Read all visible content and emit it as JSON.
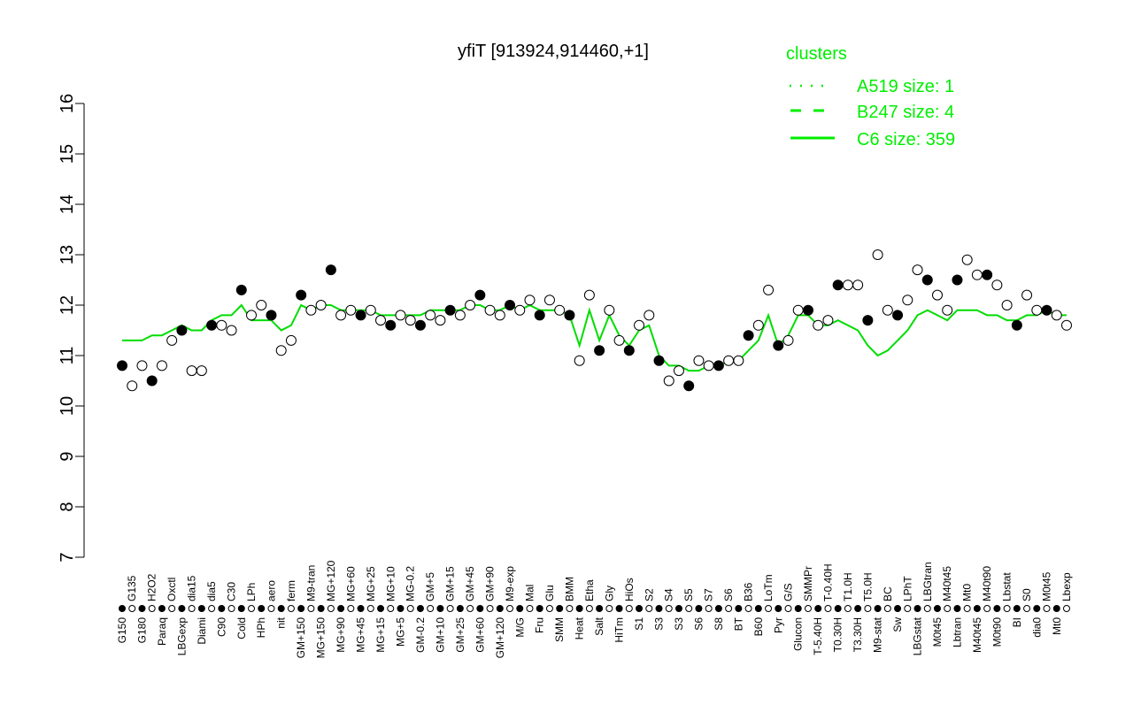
{
  "chart_data": {
    "type": "line",
    "title": "yfiT [913924,914460,+1]",
    "xlabel": "",
    "ylabel": "",
    "ylim": [
      7,
      16
    ],
    "yticks": [
      7,
      8,
      9,
      10,
      11,
      12,
      13,
      14,
      15,
      16
    ],
    "grid": false,
    "legend": {
      "title": "clusters",
      "placement": "top-right",
      "entries": [
        "A519 size: 1",
        "B247 size: 4",
        "C6 size: 359"
      ],
      "styles": [
        "dotted",
        "dashed",
        "solid"
      ]
    },
    "colors": {
      "line": "#00dd00",
      "legend": "#00ee00",
      "points": "#000000"
    },
    "categories": [
      "G150",
      "G135",
      "G180",
      "H2O2",
      "Paraq",
      "Oxctl",
      "LBGexp",
      "dia15",
      "Diami",
      "dia5",
      "C90",
      "C30",
      "Cold",
      "LPh",
      "HPh",
      "aero",
      "nit",
      "ferm",
      "GM+150",
      "M9-tran",
      "MG+150",
      "MG+120",
      "MG+90",
      "MG+60",
      "MG+45",
      "MG+25",
      "MG+15",
      "MG+10",
      "MG+5",
      "MG-0.2",
      "GM-0.2",
      "GM+5",
      "GM+10",
      "GM+15",
      "GM+25",
      "GM+45",
      "GM+60",
      "GM+90",
      "GM+120",
      "M9-exp",
      "M/G",
      "Mal",
      "Fru",
      "Glu",
      "SMM",
      "BMM",
      "Heat",
      "Etha",
      "Salt",
      "Gly",
      "HiTm",
      "HiOs",
      "S1",
      "S2",
      "S3",
      "S4",
      "S3",
      "S5",
      "S6",
      "S7",
      "S8",
      "S6",
      "BT",
      "B36",
      "B60",
      "LoTm",
      "Pyr",
      "G/S",
      "Glucon",
      "SMMPr",
      "T-5.40H",
      "T-0.40H",
      "T0.30H",
      "T1.0H",
      "T3.30H",
      "T5.0H",
      "M9-stat",
      "BC",
      "Sw",
      "LPhT",
      "LBGstat",
      "LBGtran",
      "M0t45",
      "M40t45",
      "Lbtran",
      "Mt0",
      "M40t45",
      "M40t90",
      "M0t90",
      "Lbstat",
      "BI",
      "S0",
      "dia0",
      "M0t45",
      "Mt0",
      "Lbexp"
    ],
    "series": [
      {
        "name": "expression",
        "values": [
          10.8,
          10.4,
          10.8,
          10.5,
          10.8,
          11.3,
          11.5,
          10.7,
          10.7,
          11.6,
          11.6,
          11.5,
          12.3,
          11.8,
          12.0,
          11.8,
          11.1,
          11.3,
          12.2,
          11.9,
          12.0,
          12.7,
          11.8,
          11.9,
          11.8,
          11.9,
          11.7,
          11.6,
          11.8,
          11.7,
          11.6,
          11.8,
          11.7,
          11.9,
          11.8,
          12.0,
          12.2,
          11.9,
          11.8,
          12.0,
          11.9,
          12.1,
          11.8,
          12.1,
          11.9,
          11.8,
          10.9,
          12.2,
          11.1,
          11.9,
          11.3,
          11.1,
          11.6,
          11.8,
          10.9,
          10.5,
          10.7,
          10.4,
          10.9,
          10.8,
          10.8,
          10.9,
          10.9,
          11.4,
          11.6,
          12.3,
          11.2,
          11.3,
          11.9,
          11.9,
          11.6,
          11.7,
          12.4,
          12.4,
          12.4,
          11.7,
          13.0,
          11.9,
          11.8,
          12.1,
          12.7,
          12.5,
          12.2,
          11.9,
          12.5,
          12.9,
          12.6,
          12.6,
          12.4,
          12.0,
          11.6,
          12.2,
          11.9,
          11.9,
          11.8,
          11.6
        ]
      },
      {
        "name": "C6",
        "values": [
          11.3,
          11.3,
          11.3,
          11.4,
          11.4,
          11.5,
          11.6,
          11.5,
          11.5,
          11.7,
          11.8,
          11.8,
          12.0,
          11.7,
          11.7,
          11.7,
          11.5,
          11.6,
          12.0,
          11.9,
          12.0,
          12.0,
          11.9,
          11.9,
          11.9,
          11.9,
          11.8,
          11.8,
          11.8,
          11.8,
          11.8,
          11.9,
          11.9,
          11.9,
          11.9,
          12.0,
          12.0,
          11.9,
          11.9,
          12.0,
          11.9,
          12.0,
          11.9,
          11.9,
          11.9,
          11.8,
          11.2,
          11.9,
          11.3,
          11.8,
          11.4,
          11.2,
          11.5,
          11.6,
          11.0,
          10.8,
          10.8,
          10.7,
          10.7,
          10.8,
          10.8,
          10.9,
          10.9,
          11.1,
          11.3,
          11.8,
          11.2,
          11.4,
          11.8,
          11.8,
          11.6,
          11.6,
          11.7,
          11.6,
          11.5,
          11.2,
          11.0,
          11.1,
          11.3,
          11.5,
          11.8,
          11.9,
          11.8,
          11.7,
          11.9,
          11.9,
          11.9,
          11.8,
          11.8,
          11.7,
          11.7,
          11.8,
          11.8,
          11.9,
          11.8,
          11.8
        ]
      }
    ]
  }
}
